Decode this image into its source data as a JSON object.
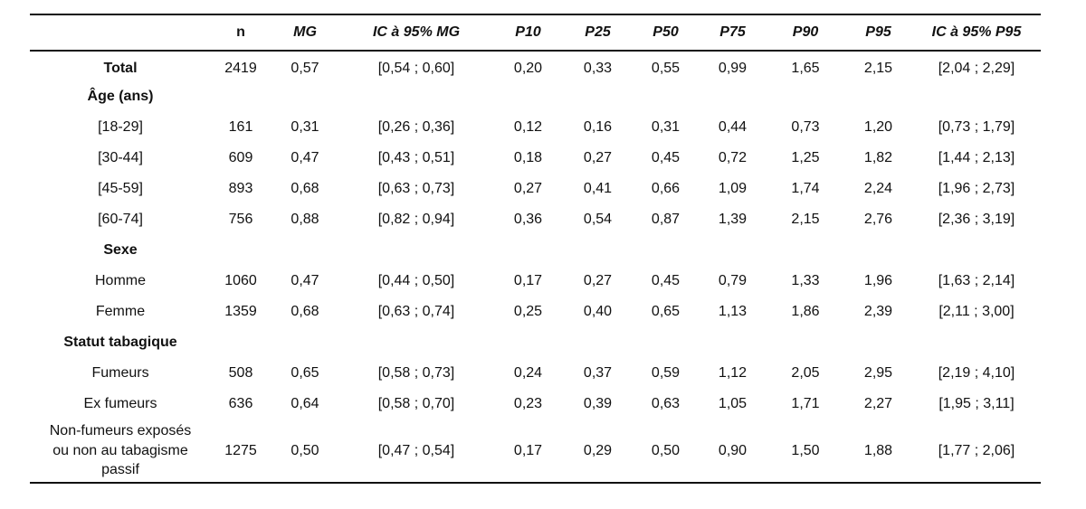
{
  "headers": [
    "",
    "n",
    "MG",
    "IC à 95% MG",
    "P10",
    "P25",
    "P50",
    "P75",
    "P90",
    "P95",
    "IC à 95% P95"
  ],
  "rows": [
    {
      "label": "Total",
      "bold": true,
      "cells": [
        "2419",
        "0,57",
        "[0,54 ; 0,60]",
        "0,20",
        "0,33",
        "0,55",
        "0,99",
        "1,65",
        "2,15",
        "[2,04 ; 2,29]"
      ]
    },
    {
      "label": "Âge (ans)",
      "bold": true,
      "cells": []
    },
    {
      "label": "[18-29]",
      "cells": [
        "161",
        "0,31",
        "[0,26 ; 0,36]",
        "0,12",
        "0,16",
        "0,31",
        "0,44",
        "0,73",
        "1,20",
        "[0,73 ; 1,79]"
      ]
    },
    {
      "label": "[30-44]",
      "cells": [
        "609",
        "0,47",
        "[0,43 ; 0,51]",
        "0,18",
        "0,27",
        "0,45",
        "0,72",
        "1,25",
        "1,82",
        "[1,44 ; 2,13]"
      ]
    },
    {
      "label": "[45-59]",
      "cells": [
        "893",
        "0,68",
        "[0,63 ; 0,73]",
        "0,27",
        "0,41",
        "0,66",
        "1,09",
        "1,74",
        "2,24",
        "[1,96 ; 2,73]"
      ]
    },
    {
      "label": "[60-74]",
      "cells": [
        "756",
        "0,88",
        "[0,82 ; 0,94]",
        "0,36",
        "0,54",
        "0,87",
        "1,39",
        "2,15",
        "2,76",
        "[2,36 ; 3,19]"
      ]
    },
    {
      "label": "Sexe",
      "bold": true,
      "cells": []
    },
    {
      "label": "Homme",
      "cells": [
        "1060",
        "0,47",
        "[0,44 ; 0,50]",
        "0,17",
        "0,27",
        "0,45",
        "0,79",
        "1,33",
        "1,96",
        "[1,63 ; 2,14]"
      ]
    },
    {
      "label": "Femme",
      "cells": [
        "1359",
        "0,68",
        "[0,63 ; 0,74]",
        "0,25",
        "0,40",
        "0,65",
        "1,13",
        "1,86",
        "2,39",
        "[2,11 ; 3,00]"
      ]
    },
    {
      "label": "Statut tabagique",
      "bold": true,
      "cells": []
    },
    {
      "label": "Fumeurs",
      "cells": [
        "508",
        "0,65",
        "[0,58 ; 0,73]",
        "0,24",
        "0,37",
        "0,59",
        "1,12",
        "2,05",
        "2,95",
        "[2,19 ; 4,10]"
      ]
    },
    {
      "label": "Ex fumeurs",
      "cells": [
        "636",
        "0,64",
        "[0,58 ; 0,70]",
        "0,23",
        "0,39",
        "0,63",
        "1,05",
        "1,71",
        "2,27",
        "[1,95 ; 3,11]"
      ]
    },
    {
      "label_lines": [
        "Non-fumeurs exposés",
        "ou non au tabagisme",
        "passif"
      ],
      "cells": [
        "1275",
        "0,50",
        "[0,47 ; 0,54]",
        "0,17",
        "0,29",
        "0,50",
        "0,90",
        "1,50",
        "1,88",
        "[1,77 ; 2,06]"
      ]
    }
  ]
}
